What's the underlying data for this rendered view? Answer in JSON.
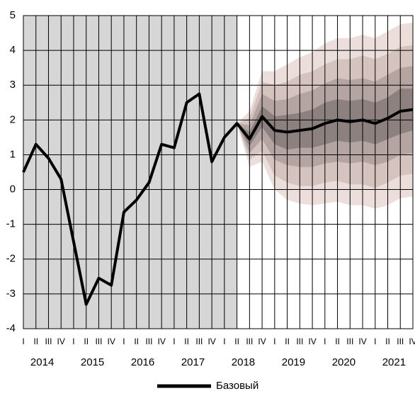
{
  "chart_data": {
    "type": "fan",
    "categories": [
      "I",
      "II",
      "III",
      "IV",
      "I",
      "II",
      "III",
      "IV",
      "I",
      "II",
      "III",
      "IV",
      "I",
      "II",
      "III",
      "IV",
      "I",
      "II",
      "III",
      "IV",
      "I",
      "II",
      "III",
      "IV",
      "I",
      "II",
      "III",
      "IV",
      "I",
      "II",
      "III",
      "IV"
    ],
    "years": [
      "2014",
      "2015",
      "2016",
      "2017",
      "2018",
      "2019",
      "2020",
      "2021"
    ],
    "series": [
      {
        "name": "Базовый",
        "color": "#000000",
        "values": [
          0.5,
          1.3,
          0.9,
          0.3,
          -1.5,
          -3.3,
          -2.55,
          -2.75,
          -0.65,
          -0.3,
          0.2,
          1.3,
          1.2,
          2.5,
          2.75,
          0.8,
          1.5,
          1.9,
          1.45,
          2.1,
          1.7,
          1.65,
          1.7,
          1.75,
          1.9,
          2.0,
          1.95,
          2.0,
          1.9,
          2.05,
          2.25,
          2.3
        ]
      }
    ],
    "bands": [
      {
        "color": "#ecdeda",
        "lower": [
          null,
          null,
          null,
          null,
          null,
          null,
          null,
          null,
          null,
          null,
          null,
          null,
          null,
          null,
          null,
          null,
          null,
          1.9,
          0.65,
          0.8,
          0.0,
          -0.3,
          -0.4,
          -0.45,
          -0.4,
          -0.35,
          -0.45,
          -0.45,
          -0.55,
          -0.45,
          -0.25,
          -0.2
        ],
        "upper": [
          null,
          null,
          null,
          null,
          null,
          null,
          null,
          null,
          null,
          null,
          null,
          null,
          null,
          null,
          null,
          null,
          null,
          1.9,
          2.25,
          3.4,
          3.4,
          3.6,
          3.8,
          3.95,
          4.2,
          4.35,
          4.35,
          4.45,
          4.35,
          4.55,
          4.75,
          4.8
        ]
      },
      {
        "color": "#d5c3bf",
        "lower": [
          null,
          null,
          null,
          null,
          null,
          null,
          null,
          null,
          null,
          null,
          null,
          null,
          null,
          null,
          null,
          null,
          null,
          1.9,
          0.85,
          1.1,
          0.4,
          0.2,
          0.1,
          0.1,
          0.2,
          0.25,
          0.15,
          0.15,
          0.05,
          0.2,
          0.4,
          0.45
        ],
        "upper": [
          null,
          null,
          null,
          null,
          null,
          null,
          null,
          null,
          null,
          null,
          null,
          null,
          null,
          null,
          null,
          null,
          null,
          1.9,
          2.05,
          3.1,
          3.0,
          3.1,
          3.3,
          3.4,
          3.6,
          3.75,
          3.75,
          3.85,
          3.75,
          3.9,
          4.1,
          4.15
        ]
      },
      {
        "color": "#b4a4a2",
        "lower": [
          null,
          null,
          null,
          null,
          null,
          null,
          null,
          null,
          null,
          null,
          null,
          null,
          null,
          null,
          null,
          null,
          null,
          1.9,
          1.05,
          1.45,
          0.85,
          0.7,
          0.65,
          0.65,
          0.75,
          0.8,
          0.75,
          0.8,
          0.7,
          0.8,
          1.0,
          1.05
        ],
        "upper": [
          null,
          null,
          null,
          null,
          null,
          null,
          null,
          null,
          null,
          null,
          null,
          null,
          null,
          null,
          null,
          null,
          null,
          1.9,
          1.85,
          2.75,
          2.55,
          2.6,
          2.75,
          2.85,
          3.05,
          3.2,
          3.15,
          3.2,
          3.1,
          3.3,
          3.5,
          3.55
        ]
      },
      {
        "color": "#8d8180",
        "lower": [
          null,
          null,
          null,
          null,
          null,
          null,
          null,
          null,
          null,
          null,
          null,
          null,
          null,
          null,
          null,
          null,
          null,
          1.9,
          1.25,
          1.8,
          1.3,
          1.15,
          1.2,
          1.2,
          1.3,
          1.4,
          1.35,
          1.4,
          1.3,
          1.45,
          1.6,
          1.7
        ],
        "upper": [
          null,
          null,
          null,
          null,
          null,
          null,
          null,
          null,
          null,
          null,
          null,
          null,
          null,
          null,
          null,
          null,
          null,
          1.9,
          1.65,
          2.4,
          2.1,
          2.15,
          2.2,
          2.3,
          2.5,
          2.6,
          2.55,
          2.6,
          2.5,
          2.65,
          2.9,
          2.9
        ]
      }
    ],
    "history_color": "#d6d6d6",
    "ylim": [
      -4,
      5
    ],
    "yticks": [
      -4,
      -3,
      -2,
      -1,
      0,
      1,
      2,
      3,
      4,
      5
    ],
    "grid": true
  }
}
